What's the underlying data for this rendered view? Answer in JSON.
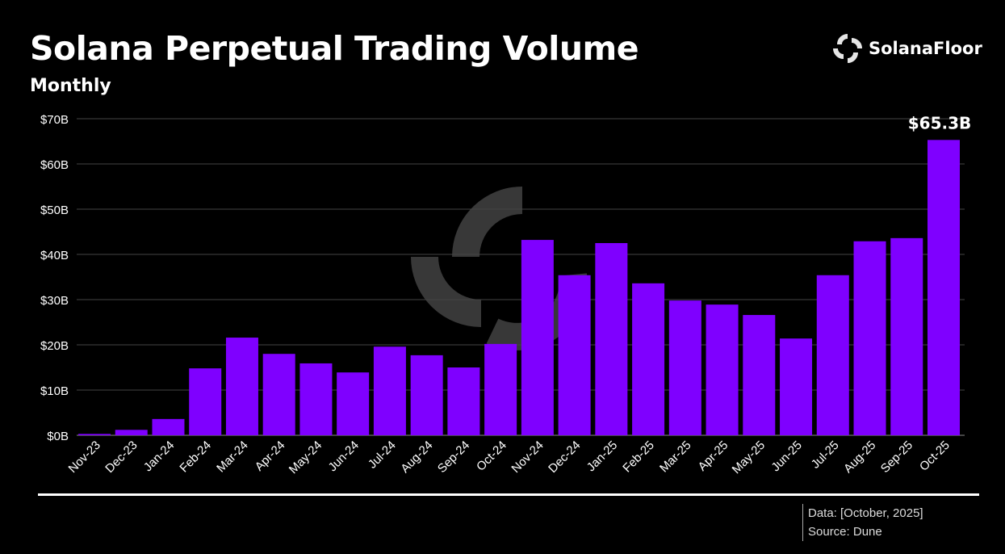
{
  "header": {
    "title": "Solana Perpetual Trading Volume",
    "subtitle": "Monthly",
    "logo_text": "SolanaFloor"
  },
  "footer": {
    "data_note": "Data: [October, 2025]",
    "source": "Source: Dune"
  },
  "colors": {
    "bar": "#7f00ff",
    "background": "#000000",
    "grid": "#444444"
  },
  "chart_data": {
    "type": "bar",
    "title": "Solana Perpetual Trading Volume",
    "subtitle": "Monthly",
    "xlabel": "",
    "ylabel": "",
    "ylim": [
      0,
      70
    ],
    "yticks": [
      0,
      10,
      20,
      30,
      40,
      50,
      60,
      70
    ],
    "ytick_labels": [
      "$0B",
      "$10B",
      "$20B",
      "$30B",
      "$40B",
      "$50B",
      "$60B",
      "$70B"
    ],
    "categories": [
      "Nov-23",
      "Dec-23",
      "Jan-24",
      "Feb-24",
      "Mar-24",
      "Apr-24",
      "May-24",
      "Jun-24",
      "Jul-24",
      "Aug-24",
      "Sep-24",
      "Oct-24",
      "Nov-24",
      "Dec-24",
      "Jan-25",
      "Feb-25",
      "Mar-25",
      "Apr-25",
      "May-25",
      "Jun-25",
      "Jul-25",
      "Aug-25",
      "Sep-25",
      "Oct-25"
    ],
    "values": [
      0.3,
      1.2,
      3.6,
      14.8,
      21.6,
      18.0,
      15.9,
      13.9,
      19.6,
      17.7,
      15.0,
      20.2,
      43.2,
      35.4,
      42.5,
      33.6,
      29.8,
      28.9,
      26.6,
      21.4,
      35.4,
      42.9,
      43.6,
      65.3
    ],
    "unit": "$B",
    "annotations": [
      {
        "category": "Oct-25",
        "text": "$65.3B"
      }
    ],
    "grid": true
  }
}
